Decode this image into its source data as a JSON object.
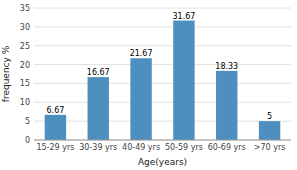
{
  "chart_data": {
    "type": "bar",
    "categories": [
      "15-29 yrs",
      "30-39 yrs",
      "40-49 yrs",
      "50-59 yrs",
      "60-69 yrs",
      ">70 yrs"
    ],
    "values": [
      6.67,
      16.67,
      21.67,
      31.67,
      18.33,
      5
    ],
    "color": "#4d8fbe",
    "xlabel": "Age(years)",
    "ylabel": "frequency %",
    "ylim": [
      0,
      35
    ],
    "yticks": [
      0,
      5,
      10,
      15,
      20,
      25,
      30,
      35
    ],
    "grid": true,
    "data_labels": true
  }
}
